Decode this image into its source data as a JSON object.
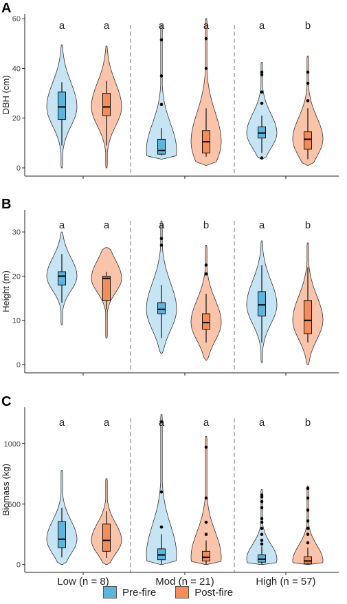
{
  "chart_data": [
    {
      "type": "violin",
      "panel_label": "A",
      "ylabel": "DBH (cm)",
      "ylim": [
        0,
        62
      ],
      "yticks": [
        0,
        20,
        40,
        60
      ],
      "groups": [
        "Low",
        "Mod",
        "High"
      ],
      "series": [
        {
          "name": "Pre-fire",
          "values": [
            {
              "group": "Low",
              "min": 9,
              "q1": 19.5,
              "median": 24.5,
              "q3": 30.5,
              "max": 34.5,
              "violin_min": 0,
              "violin_max": 49.5,
              "outliers": []
            },
            {
              "group": "Mod",
              "min": 5,
              "q1": 5.5,
              "median": 7,
              "q3": 11.5,
              "max": 16,
              "violin_min": 3.5,
              "violin_max": 57.5,
              "outliers": [
                25.5,
                37,
                51.5
              ]
            },
            {
              "group": "High",
              "min": 6,
              "q1": 12,
              "median": 14,
              "q3": 16.5,
              "max": 21,
              "violin_min": 3.5,
              "violin_max": 42.5,
              "outliers": [
                4,
                26,
                30.5,
                37.5,
                38.5
              ]
            }
          ]
        },
        {
          "name": "Post-fire",
          "values": [
            {
              "group": "Low",
              "min": 9,
              "q1": 21,
              "median": 24.5,
              "q3": 30,
              "max": 35,
              "violin_min": 0,
              "violin_max": 49,
              "outliers": []
            },
            {
              "group": "Mod",
              "min": 4.5,
              "q1": 6,
              "median": 10.5,
              "q3": 15,
              "max": 24,
              "violin_min": 1,
              "violin_max": 60,
              "outliers": [
                40,
                52
              ]
            },
            {
              "group": "High",
              "min": 3.5,
              "q1": 7.5,
              "median": 11.5,
              "q3": 14.5,
              "max": 24,
              "violin_min": 1,
              "violin_max": 45,
              "outliers": [
                27,
                34,
                38.5
              ]
            }
          ]
        }
      ],
      "letters": [
        [
          "a",
          "a"
        ],
        [
          "a",
          "a"
        ],
        [
          "a",
          "b"
        ]
      ]
    },
    {
      "type": "violin",
      "panel_label": "B",
      "ylabel": "Height (m)",
      "ylim": [
        0,
        35
      ],
      "yticks": [
        0,
        10,
        20,
        30
      ],
      "groups": [
        "Low",
        "Mod",
        "High"
      ],
      "series": [
        {
          "name": "Pre-fire",
          "values": [
            {
              "group": "Low",
              "min": 14,
              "q1": 18,
              "median": 20,
              "q3": 21,
              "max": 25,
              "violin_min": 9,
              "violin_max": 30,
              "outliers": []
            },
            {
              "group": "Mod",
              "min": 6,
              "q1": 11.5,
              "median": 12.5,
              "q3": 14,
              "max": 18,
              "violin_min": 2.5,
              "violin_max": 32.5,
              "outliers": [
                27,
                28.5
              ]
            },
            {
              "group": "High",
              "min": 5,
              "q1": 11,
              "median": 13.5,
              "q3": 16.5,
              "max": 22.5,
              "violin_min": 0.5,
              "violin_max": 28,
              "outliers": []
            }
          ]
        },
        {
          "name": "Post-fire",
          "values": [
            {
              "group": "Low",
              "min": 12.5,
              "q1": 14.5,
              "median": 19.5,
              "q3": 20,
              "max": 21,
              "violin_min": 6,
              "violin_max": 26.5,
              "outliers": []
            },
            {
              "group": "Mod",
              "min": 5,
              "q1": 8,
              "median": 9.5,
              "q3": 11.5,
              "max": 16,
              "violin_min": 1,
              "violin_max": 27,
              "outliers": [
                20.5,
                22.5
              ]
            },
            {
              "group": "High",
              "min": 5,
              "q1": 7,
              "median": 10,
              "q3": 14.5,
              "max": 22,
              "violin_min": 0,
              "violin_max": 27.5,
              "outliers": []
            }
          ]
        }
      ],
      "letters": [
        [
          "a",
          "a"
        ],
        [
          "a",
          "b"
        ],
        [
          "a",
          "b"
        ]
      ]
    },
    {
      "type": "violin",
      "panel_label": "C",
      "ylabel": "Biomass (kg)",
      "ylim": [
        -30,
        1300
      ],
      "yticks": [
        0,
        500,
        1000
      ],
      "groups": [
        "Low",
        "Mod",
        "High"
      ],
      "series": [
        {
          "name": "Pre-fire",
          "values": [
            {
              "group": "Low",
              "min": 60,
              "q1": 140,
              "median": 210,
              "q3": 355,
              "max": 470,
              "violin_min": 0,
              "violin_max": 780,
              "outliers": []
            },
            {
              "group": "Mod",
              "min": 5,
              "q1": 40,
              "median": 80,
              "q3": 130,
              "max": 250,
              "violin_min": 0,
              "violin_max": 1240,
              "outliers": [
                310,
                600,
                1180
              ]
            },
            {
              "group": "High",
              "min": 2,
              "q1": 20,
              "median": 45,
              "q3": 80,
              "max": 150,
              "violin_min": 0,
              "violin_max": 620,
              "outliers": [
                170,
                200,
                250,
                300,
                350,
                380,
                470,
                520,
                560,
                575
              ]
            }
          ]
        },
        {
          "name": "Post-fire",
          "values": [
            {
              "group": "Low",
              "min": 55,
              "q1": 110,
              "median": 200,
              "q3": 335,
              "max": 440,
              "violin_min": 0,
              "violin_max": 710,
              "outliers": []
            },
            {
              "group": "Mod",
              "min": 2,
              "q1": 30,
              "median": 60,
              "q3": 110,
              "max": 200,
              "violin_min": 0,
              "violin_max": 1060,
              "outliers": [
                250,
                350,
                550,
                970
              ]
            },
            {
              "group": "High",
              "min": 0,
              "q1": 10,
              "median": 30,
              "q3": 65,
              "max": 140,
              "violin_min": 0,
              "violin_max": 650,
              "outliers": [
                180,
                250,
                300,
                360,
                450,
                550,
                630
              ]
            }
          ]
        }
      ],
      "letters": [
        [
          "a",
          "a"
        ],
        [
          "a",
          "a"
        ],
        [
          "a",
          "b"
        ]
      ]
    }
  ],
  "x_tick_labels": [
    "Low (n = 8)",
    "Mod (n = 21)",
    "High (n = 57)"
  ],
  "legend": [
    {
      "name": "Pre-fire",
      "box_color": "#5bb5dc",
      "violin_color": "#c6e4f3"
    },
    {
      "name": "Post-fire",
      "box_color": "#f68c56",
      "violin_color": "#f9c4a9"
    }
  ]
}
